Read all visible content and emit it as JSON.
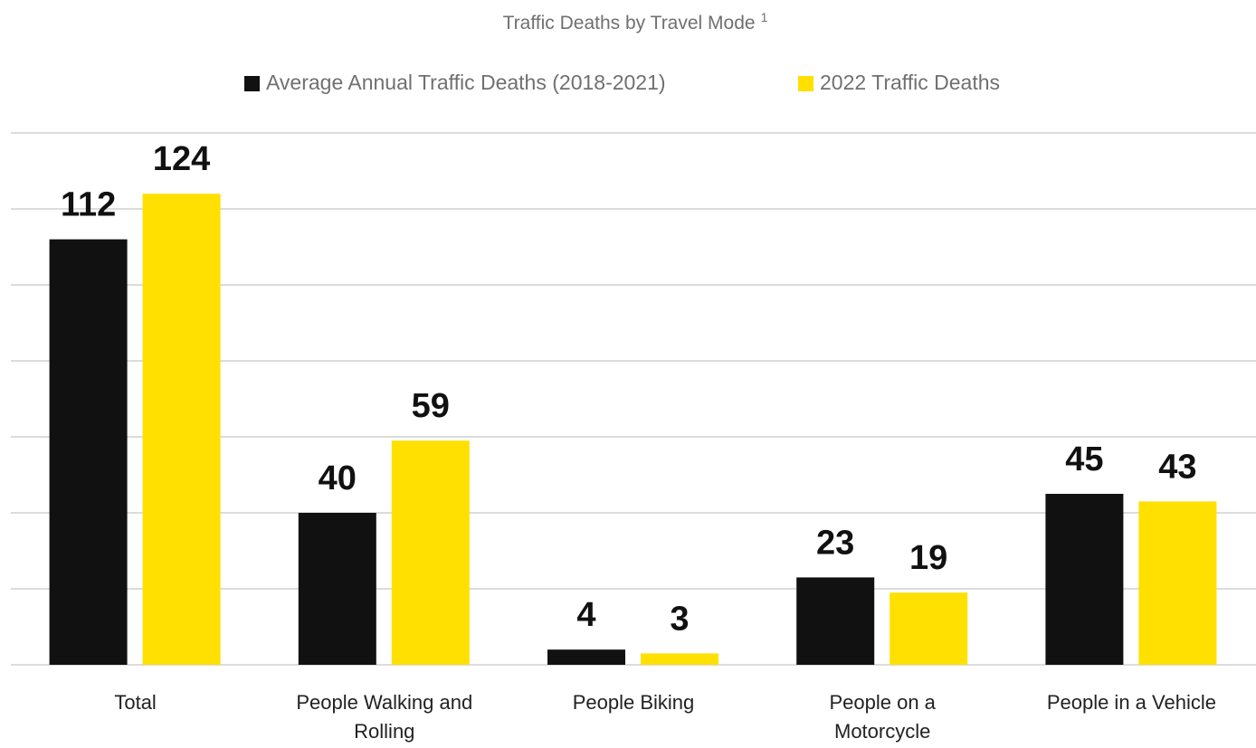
{
  "chart_data": {
    "type": "bar",
    "title": "Traffic Deaths by Travel Mode",
    "title_footnote": "1",
    "categories": [
      "Total",
      "People Walking and Rolling",
      "People Biking",
      "People on a Motorcycle",
      "People in a Vehicle"
    ],
    "series": [
      {
        "name": "Average Annual Traffic Deaths (2018-2021)",
        "color": "#111111",
        "values": [
          112,
          40,
          4,
          23,
          45
        ]
      },
      {
        "name": "2022 Traffic Deaths",
        "color": "#ffe000",
        "values": [
          124,
          59,
          3,
          19,
          43
        ]
      }
    ],
    "ylim": [
      0,
      140
    ],
    "yticks": [
      0,
      20,
      40,
      60,
      80,
      100,
      120,
      140
    ],
    "grid": true,
    "legend": "top"
  }
}
